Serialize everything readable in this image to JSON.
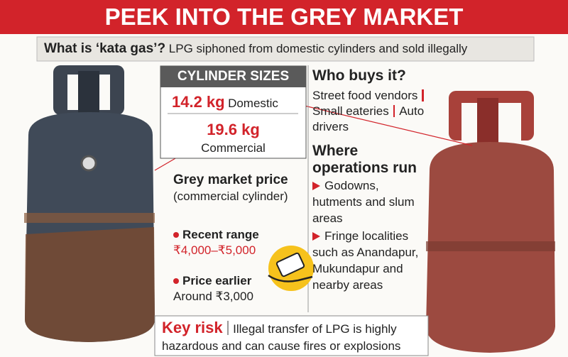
{
  "header": {
    "title": "PEEK INTO THE GREY MARKET"
  },
  "intro": {
    "question": "What is ‘kata gas’?",
    "answer": "LPG siphoned from domestic cylinders and sold illegally"
  },
  "cylinder_sizes": {
    "heading": "CYLINDER SIZES",
    "items": [
      {
        "size": "14.2 kg",
        "type": "Domestic"
      },
      {
        "size": "19.6 kg",
        "type": "Commercial"
      }
    ]
  },
  "price": {
    "heading": "Grey market price",
    "note": "(commercial cylinder)",
    "items": [
      {
        "label": "Recent range",
        "value": "₹4,000–₹5,000"
      },
      {
        "label": "Price earlier",
        "value": "Around ₹3,000"
      }
    ]
  },
  "buyers": {
    "heading": "Who buys it?",
    "items": [
      "Street food vendors",
      "Small eateries",
      "Auto drivers"
    ]
  },
  "operations": {
    "heading": "Where operations run",
    "items": [
      "Godowns, hutments and slum areas",
      "Fringe localities such as Anandapur, Mukundapur and nearby areas"
    ]
  },
  "risk": {
    "label": "Key risk",
    "text": "Illegal transfer of LPG is highly hazardous and can cause fires or explosions"
  }
}
